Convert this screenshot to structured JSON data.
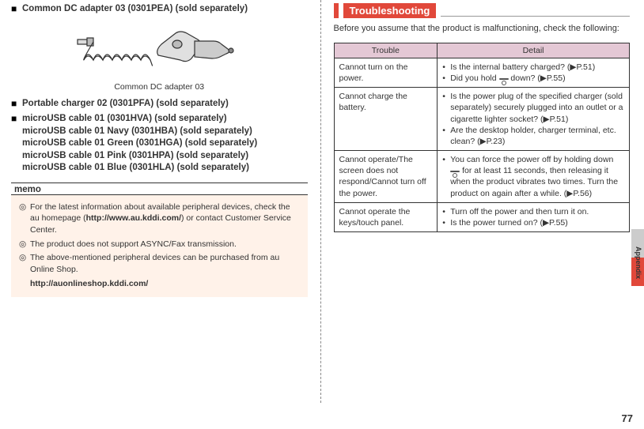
{
  "left": {
    "items": [
      "Common DC adapter 03 (0301PEA) (sold separately)",
      "Portable charger 02 (0301PFA) (sold separately)",
      "microUSB cable 01 (0301HVA) (sold separately)\nmicroUSB cable 01 Navy (0301HBA) (sold separately)\nmicroUSB cable 01 Green (0301HGA) (sold separately)\nmicroUSB cable 01 Pink (0301HPA) (sold separately)\nmicroUSB cable 01 Blue (0301HLA) (sold separately)"
    ],
    "figure_caption": "Common DC adapter 03",
    "memo_label": "memo",
    "memo": [
      {
        "text": "For the latest information about available peripheral devices, check the au homepage (",
        "bold": "http://www.au.kddi.com/",
        "tail": ") or contact Customer Service Center."
      },
      {
        "text": "The product does not support ASYNC/Fax transmission."
      },
      {
        "text": "The above-mentioned peripheral devices can be purchased from au Online Shop."
      }
    ],
    "memo_link": "http://auonlineshop.kddi.com/"
  },
  "right": {
    "section_title": "Troubleshooting",
    "intro": "Before you assume that the product is malfunctioning, check the following:",
    "headers": [
      "Trouble",
      "Detail"
    ],
    "rows": [
      {
        "trouble": "Cannot turn on the power.",
        "details": [
          "Is the internal battery charged? (▶P.51)",
          "Did you hold [KEY] down? (▶P.55)"
        ]
      },
      {
        "trouble": "Cannot charge the battery.",
        "details": [
          "Is the power plug of the specified charger (sold separately) securely plugged into an outlet or a cigarette lighter socket? (▶P.51)",
          "Are the desktop holder, charger terminal, etc. clean? (▶P.23)"
        ]
      },
      {
        "trouble": "Cannot operate/The screen does not respond/Cannot turn off the power.",
        "details": [
          "You can force the power off by holding down [KEY] for at least 11 seconds, then releasing it when the product vibrates two times. Turn the product on again after a while. (▶P.56)"
        ]
      },
      {
        "trouble": "Cannot operate the keys/touch panel.",
        "details": [
          "Turn off the power and then turn it on.",
          "Is the power turned on? (▶P.55)"
        ]
      }
    ],
    "side_label": "Appendix",
    "page_number": "77"
  },
  "colors": {
    "accent": "#e1483a",
    "memo_bg": "#fff2e9",
    "table_header": "#e4c8d5",
    "border": "#333333"
  }
}
